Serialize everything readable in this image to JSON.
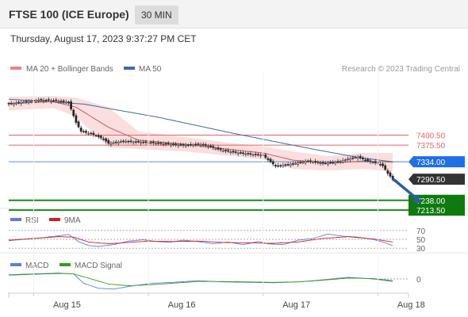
{
  "header": {
    "title": "FTSE 100 (ICE Europe)",
    "interval": "30 MIN"
  },
  "timestamp": "Thursday, August 17, 2023 9:37:27 PM CET",
  "colors": {
    "candle_up": "#ffffff",
    "candle_down": "#222222",
    "ma20": "#c95a5a",
    "bollinger_fill": "#fbdada",
    "ma50": "#3a6ea5",
    "resistance": "#e06666",
    "current_line": "#5b8fd6",
    "current_label": "#1f6fe8",
    "last_label": "#333333",
    "support": "#1a8a1a",
    "support_label": "#0f7a0f",
    "forecast_arrow": "#2a5ca8",
    "rsi": "#5b7fd6",
    "rsi_ma": "#d42020",
    "macd": "#5b7fd6",
    "macd_signal": "#3a9a1a"
  },
  "chart_data": {
    "type": "candlestick",
    "main_panel": {
      "legend": [
        {
          "label": "MA 20 + Bollinger Bands",
          "color": "#f08080",
          "name": "ma20-legend"
        },
        {
          "label": "MA 50",
          "color": "#3a6ea5",
          "name": "ma50-legend"
        }
      ],
      "watermark": "Research © 2023 Trading Central",
      "ylim": [
        7200,
        7520
      ],
      "x_ticks": [
        "Aug 15",
        "Aug 16",
        "Aug 17",
        "Aug 18"
      ],
      "x_tick_index": [
        10,
        56,
        102,
        148
      ],
      "levels": [
        {
          "label": "7400.50",
          "value": 7400.5,
          "kind": "resistance"
        },
        {
          "label": "7375.50",
          "value": 7375.5,
          "kind": "resistance"
        },
        {
          "label": "7334.00",
          "value": 7334.0,
          "kind": "pivot"
        },
        {
          "label": "7290.50",
          "value": 7290.5,
          "kind": "last"
        },
        {
          "label": "7238.00",
          "value": 7238.0,
          "kind": "support"
        },
        {
          "label": "7213.50",
          "value": 7213.5,
          "kind": "support"
        }
      ],
      "anchors": [
        [
          0,
          7478
        ],
        [
          6,
          7483
        ],
        [
          12,
          7488
        ],
        [
          19,
          7486
        ],
        [
          24,
          7482
        ],
        [
          27,
          7432
        ],
        [
          29,
          7410
        ],
        [
          34,
          7402
        ],
        [
          38,
          7391
        ],
        [
          40,
          7380
        ],
        [
          46,
          7385
        ],
        [
          52,
          7383
        ],
        [
          58,
          7381
        ],
        [
          64,
          7378
        ],
        [
          70,
          7375
        ],
        [
          76,
          7378
        ],
        [
          80,
          7373
        ],
        [
          86,
          7362
        ],
        [
          92,
          7356
        ],
        [
          98,
          7352
        ],
        [
          102,
          7350
        ],
        [
          107,
          7323
        ],
        [
          114,
          7329
        ],
        [
          120,
          7336
        ],
        [
          126,
          7330
        ],
        [
          132,
          7334
        ],
        [
          136,
          7341
        ],
        [
          140,
          7346
        ],
        [
          144,
          7336
        ],
        [
          148,
          7330
        ],
        [
          150,
          7324
        ],
        [
          152,
          7305
        ],
        [
          154,
          7290.5
        ]
      ],
      "ma50_line": [
        [
          0,
          7490
        ],
        [
          30,
          7478
        ],
        [
          60,
          7445
        ],
        [
          90,
          7405
        ],
        [
          120,
          7368
        ],
        [
          140,
          7345
        ],
        [
          154,
          7334
        ]
      ],
      "ma20_line": [
        [
          0,
          7479
        ],
        [
          18,
          7484
        ],
        [
          27,
          7470
        ],
        [
          40,
          7420
        ],
        [
          52,
          7388
        ],
        [
          70,
          7378
        ],
        [
          90,
          7364
        ],
        [
          102,
          7356
        ],
        [
          114,
          7338
        ],
        [
          128,
          7330
        ],
        [
          142,
          7336
        ],
        [
          154,
          7333
        ]
      ],
      "band_upper": [
        [
          0,
          7496
        ],
        [
          18,
          7498
        ],
        [
          27,
          7494
        ],
        [
          40,
          7470
        ],
        [
          52,
          7410
        ],
        [
          70,
          7396
        ],
        [
          90,
          7380
        ],
        [
          102,
          7372
        ],
        [
          114,
          7360
        ],
        [
          128,
          7348
        ],
        [
          142,
          7356
        ],
        [
          154,
          7356
        ]
      ],
      "band_lower": [
        [
          0,
          7462
        ],
        [
          18,
          7468
        ],
        [
          27,
          7446
        ],
        [
          40,
          7370
        ],
        [
          52,
          7366
        ],
        [
          70,
          7360
        ],
        [
          90,
          7348
        ],
        [
          102,
          7340
        ],
        [
          114,
          7316
        ],
        [
          128,
          7312
        ],
        [
          142,
          7316
        ],
        [
          154,
          7310
        ]
      ],
      "forecast": {
        "from": [
          154,
          7292
        ],
        "to": [
          165,
          7232
        ]
      }
    },
    "rsi_panel": {
      "legend": [
        {
          "label": "RSI",
          "color": "#5b7fd6",
          "name": "rsi-legend"
        },
        {
          "label": "9MA",
          "color": "#d42020",
          "name": "rsi-ma-legend"
        }
      ],
      "levels": [
        {
          "label": "70",
          "value": 70
        },
        {
          "label": "50",
          "value": 50
        },
        {
          "label": "30",
          "value": 30
        }
      ],
      "ylim": [
        25,
        75
      ],
      "rsi": [
        [
          0,
          47
        ],
        [
          8,
          51
        ],
        [
          14,
          54
        ],
        [
          20,
          58
        ],
        [
          24,
          61
        ],
        [
          28,
          45
        ],
        [
          32,
          36
        ],
        [
          36,
          34
        ],
        [
          42,
          38
        ],
        [
          48,
          46
        ],
        [
          54,
          49
        ],
        [
          58,
          46
        ],
        [
          64,
          43
        ],
        [
          70,
          48
        ],
        [
          76,
          45
        ],
        [
          82,
          40
        ],
        [
          88,
          44
        ],
        [
          94,
          38
        ],
        [
          100,
          45
        ],
        [
          104,
          40
        ],
        [
          110,
          38
        ],
        [
          116,
          48
        ],
        [
          122,
          52
        ],
        [
          128,
          62
        ],
        [
          134,
          57
        ],
        [
          140,
          55
        ],
        [
          146,
          50
        ],
        [
          150,
          44
        ],
        [
          154,
          36
        ]
      ],
      "ma9": [
        [
          0,
          48
        ],
        [
          10,
          52
        ],
        [
          20,
          56
        ],
        [
          26,
          55
        ],
        [
          32,
          44
        ],
        [
          40,
          40
        ],
        [
          48,
          43
        ],
        [
          56,
          46
        ],
        [
          66,
          45
        ],
        [
          76,
          46
        ],
        [
          86,
          43
        ],
        [
          96,
          42
        ],
        [
          106,
          41
        ],
        [
          116,
          44
        ],
        [
          126,
          52
        ],
        [
          136,
          56
        ],
        [
          146,
          51
        ],
        [
          154,
          44
        ]
      ]
    },
    "macd_panel": {
      "legend": [
        {
          "label": "MACD",
          "color": "#5b7fd6",
          "name": "macd-legend"
        },
        {
          "label": "MACD Signal",
          "color": "#3a9a1a",
          "name": "macd-signal-legend"
        }
      ],
      "zero_label": "0",
      "ylim": [
        -30,
        30
      ],
      "macd": [
        [
          0,
          10
        ],
        [
          10,
          12
        ],
        [
          20,
          14
        ],
        [
          26,
          12
        ],
        [
          30,
          -10
        ],
        [
          36,
          -22
        ],
        [
          42,
          -24
        ],
        [
          50,
          -16
        ],
        [
          58,
          -10
        ],
        [
          66,
          -8
        ],
        [
          76,
          -4
        ],
        [
          86,
          -7
        ],
        [
          96,
          -8
        ],
        [
          106,
          -9
        ],
        [
          116,
          -7
        ],
        [
          126,
          -2
        ],
        [
          136,
          4
        ],
        [
          146,
          0
        ],
        [
          150,
          -3
        ],
        [
          154,
          -6
        ]
      ],
      "signal": [
        [
          0,
          9
        ],
        [
          10,
          11
        ],
        [
          20,
          13
        ],
        [
          26,
          12
        ],
        [
          32,
          2
        ],
        [
          40,
          -12
        ],
        [
          48,
          -16
        ],
        [
          56,
          -14
        ],
        [
          66,
          -10
        ],
        [
          76,
          -6
        ],
        [
          86,
          -6
        ],
        [
          96,
          -7
        ],
        [
          106,
          -8
        ],
        [
          116,
          -7
        ],
        [
          126,
          -3
        ],
        [
          136,
          2
        ],
        [
          146,
          1
        ],
        [
          154,
          -4
        ]
      ]
    }
  }
}
